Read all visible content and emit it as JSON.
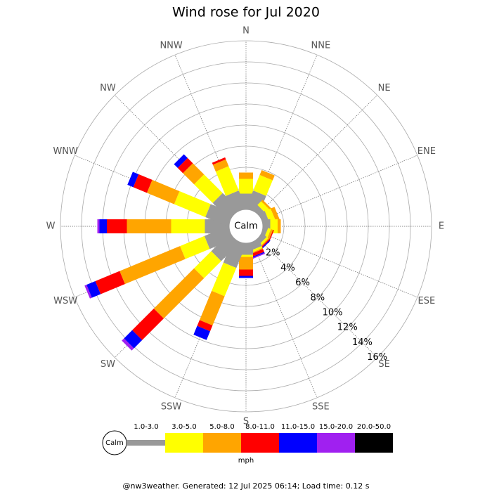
{
  "chart_data": {
    "type": "windrose",
    "title": "Wind rose for Jul 2020",
    "categories": [
      "N",
      "NNE",
      "NE",
      "ENE",
      "E",
      "ESE",
      "SE",
      "SSE",
      "S",
      "SSW",
      "SW",
      "WSW",
      "W",
      "WNW",
      "NW",
      "NNW"
    ],
    "series": [
      {
        "name": "1.0-3.0",
        "color": "#999999",
        "values": [
          1.5,
          1.8,
          0.6,
          0.6,
          0.7,
          0.4,
          0.5,
          0.7,
          1.1,
          2.4,
          2.4,
          2.4,
          2.3,
          2.3,
          2.2,
          1.8
        ]
      },
      {
        "name": "3.0-5.0",
        "color": "#ffff00",
        "values": [
          1.4,
          1.6,
          0.5,
          0.6,
          0.7,
          0.3,
          0.2,
          0.2,
          0.2,
          2.9,
          2.3,
          2.5,
          3.2,
          3.2,
          2.5,
          2.5
        ]
      },
      {
        "name": "5.0-8.0",
        "color": "#ffa500",
        "values": [
          0.6,
          0.5,
          0.2,
          0.4,
          0.3,
          0.2,
          0.1,
          0.1,
          1.2,
          3.0,
          5.4,
          6.2,
          4.2,
          2.8,
          1.5,
          0.7
        ]
      },
      {
        "name": "8.0-11.0",
        "color": "#ff0000",
        "values": [
          0,
          0,
          0,
          0,
          0,
          0.1,
          0.1,
          0.3,
          0.6,
          0.6,
          2.9,
          2.5,
          1.9,
          1.4,
          0.7,
          0.2
        ]
      },
      {
        "name": "11.0-15.0",
        "color": "#0000ff",
        "values": [
          0,
          0,
          0,
          0,
          0,
          0,
          0.1,
          0.1,
          0.2,
          0.9,
          1.1,
          0.9,
          0.7,
          0.6,
          0.5,
          0
        ]
      },
      {
        "name": "15.0-20.0",
        "color": "#a020f0",
        "values": [
          0,
          0,
          0,
          0,
          0,
          0,
          0,
          0.1,
          0,
          0,
          0.3,
          0.2,
          0.2,
          0,
          0,
          0
        ]
      },
      {
        "name": "20.0-50.0",
        "color": "#000000",
        "values": [
          0,
          0,
          0,
          0,
          0,
          0,
          0,
          0,
          0,
          0,
          0,
          0,
          0,
          0,
          0,
          0
        ]
      }
    ],
    "ylim": [
      0,
      16
    ],
    "yticks": [
      {
        "value": 2,
        "label": "2%"
      },
      {
        "value": 4,
        "label": "4%"
      },
      {
        "value": 6,
        "label": "6%"
      },
      {
        "value": 8,
        "label": "8%"
      },
      {
        "value": 10,
        "label": "10%"
      },
      {
        "value": 12,
        "label": "12%"
      },
      {
        "value": 14,
        "label": "14%"
      },
      {
        "value": 16,
        "label": "16%"
      }
    ],
    "grid": true,
    "calm_label": "Calm",
    "unit_label": "mph"
  },
  "footer": "@nw3weather. Generated: 12 Jul 2025 06:14; Load time: 0.12 s"
}
